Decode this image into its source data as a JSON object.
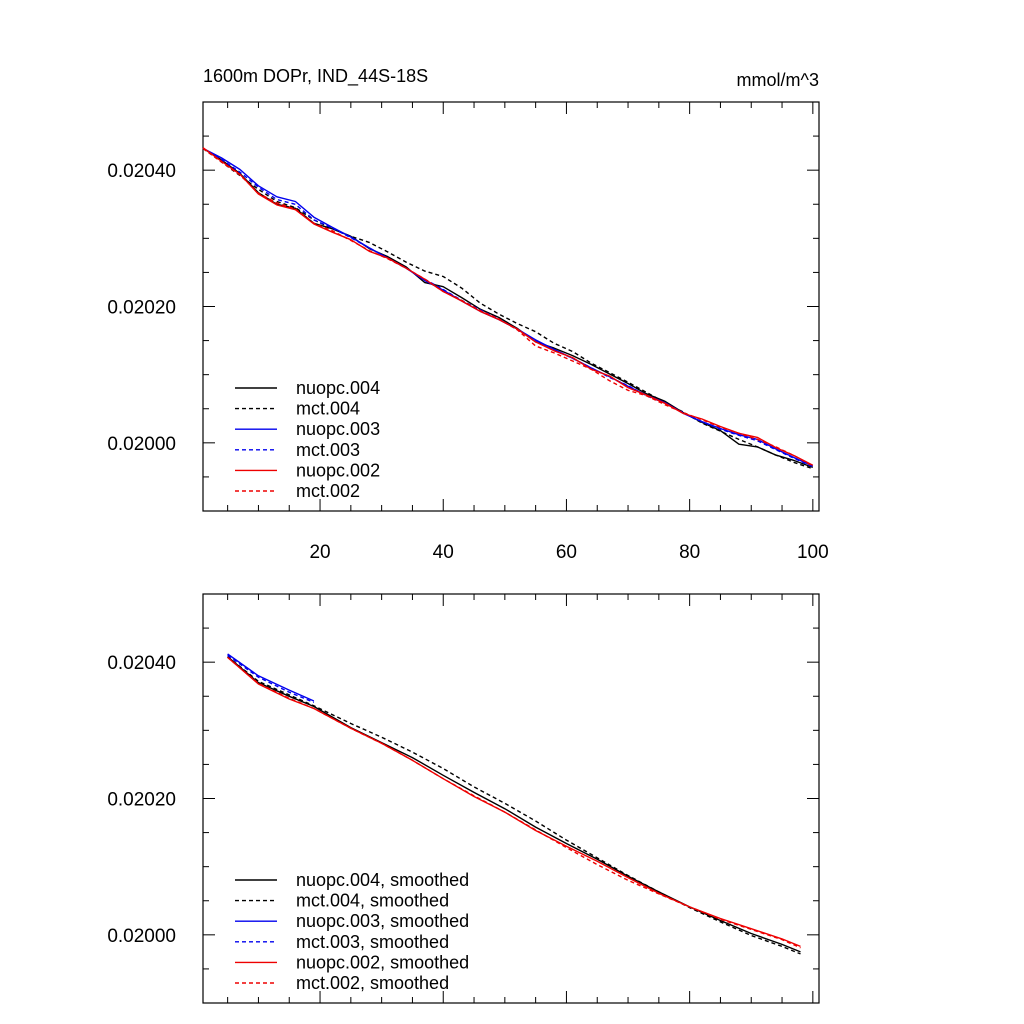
{
  "chart_data": [
    {
      "type": "line",
      "title": "1600m DOPr, IND_44S-18S",
      "units": "mmol/m^3",
      "xlim": [
        1,
        101
      ],
      "ylim": [
        0.0199,
        0.0205
      ],
      "x_ticks": [
        20,
        40,
        60,
        80,
        100
      ],
      "x_tick_labels": [
        "20",
        "40",
        "60",
        "80",
        "100"
      ],
      "y_ticks": [
        0.02,
        0.0202,
        0.0204
      ],
      "y_tick_labels": [
        "0.02000",
        "0.02020",
        "0.02040"
      ],
      "legend_position": "bottom-left",
      "series": [
        {
          "name": "nuopc.004",
          "color": "#000000",
          "dash": "solid",
          "x": [
            1,
            4,
            7,
            10,
            13,
            16,
            19,
            22,
            25,
            28,
            31,
            34,
            37,
            40,
            43,
            46,
            49,
            52,
            55,
            58,
            61,
            64,
            67,
            70,
            73,
            76,
            79,
            82,
            85,
            88,
            91,
            94,
            97,
            100
          ],
          "values": [
            0.020432,
            0.020415,
            0.020395,
            0.020367,
            0.02035,
            0.020344,
            0.020322,
            0.020314,
            0.020303,
            0.020285,
            0.020273,
            0.020258,
            0.020235,
            0.020229,
            0.020213,
            0.020196,
            0.020184,
            0.020168,
            0.020148,
            0.020139,
            0.020128,
            0.020115,
            0.020101,
            0.020087,
            0.020072,
            0.020061,
            0.020044,
            0.02003,
            0.020018,
            0.019998,
            0.019994,
            0.019982,
            0.019974,
            0.019964
          ]
        },
        {
          "name": "mct.004",
          "color": "#000000",
          "dash": "dashed",
          "x": [
            1,
            4,
            7,
            10,
            13,
            16,
            19,
            22,
            25,
            28,
            31,
            34,
            37,
            40,
            43,
            46,
            49,
            52,
            55,
            58,
            61,
            64,
            67,
            70,
            73,
            76,
            79,
            82,
            85,
            88,
            91,
            94,
            97,
            100
          ],
          "values": [
            0.020432,
            0.020412,
            0.020392,
            0.020372,
            0.020354,
            0.020345,
            0.020327,
            0.020314,
            0.020303,
            0.020294,
            0.02028,
            0.020265,
            0.020252,
            0.020244,
            0.020227,
            0.020205,
            0.020189,
            0.020175,
            0.020163,
            0.020146,
            0.020134,
            0.020117,
            0.020103,
            0.020089,
            0.020074,
            0.020059,
            0.020045,
            0.020029,
            0.020017,
            0.020005,
            0.019994,
            0.019982,
            0.019971,
            0.019962
          ]
        },
        {
          "name": "nuopc.003",
          "color": "#0000ee",
          "dash": "solid",
          "x": [
            1,
            4,
            7,
            10,
            13,
            16,
            19,
            22,
            25,
            28,
            31,
            34,
            37,
            40,
            43,
            46,
            49,
            52,
            55,
            58,
            61,
            64,
            67,
            70,
            73,
            76,
            79,
            82,
            85,
            88,
            91,
            94,
            97,
            100
          ],
          "values": [
            0.020432,
            0.020418,
            0.020401,
            0.020377,
            0.020361,
            0.020354,
            0.020331,
            0.020316,
            0.020302,
            0.020286,
            0.020271,
            0.020256,
            0.020238,
            0.020224,
            0.020208,
            0.020193,
            0.020181,
            0.020167,
            0.020151,
            0.020137,
            0.020124,
            0.02011,
            0.020097,
            0.020083,
            0.02007,
            0.020059,
            0.020043,
            0.020031,
            0.020021,
            0.020012,
            0.020005,
            0.019991,
            0.019978,
            0.019966
          ]
        },
        {
          "name": "mct.003",
          "color": "#0000ee",
          "dash": "dashed",
          "x": [
            1,
            4,
            7,
            10,
            13,
            16,
            19,
            22,
            25,
            28,
            31,
            34,
            37,
            40,
            43,
            46,
            49,
            52,
            55,
            58,
            61,
            64,
            67,
            70,
            73,
            76,
            79,
            82,
            85,
            88,
            91,
            94,
            97,
            100
          ],
          "values": [
            0.020432,
            0.020416,
            0.020397,
            0.020375,
            0.020357,
            0.02035,
            0.020327,
            0.020315,
            0.020301,
            0.020286,
            0.020271,
            0.020256,
            0.02024,
            0.020225,
            0.020209,
            0.020195,
            0.020182,
            0.020166,
            0.02015,
            0.020136,
            0.020124,
            0.02011,
            0.020096,
            0.020084,
            0.020069,
            0.020058,
            0.020044,
            0.020031,
            0.02002,
            0.020011,
            0.020003,
            0.01999,
            0.019977,
            0.019965
          ]
        },
        {
          "name": "nuopc.002",
          "color": "#ee0000",
          "dash": "solid",
          "x": [
            1,
            4,
            7,
            10,
            13,
            16,
            19,
            22,
            25,
            28,
            31,
            34,
            37,
            40,
            43,
            46,
            49,
            52,
            55,
            58,
            61,
            64,
            67,
            70,
            73,
            76,
            79,
            82,
            85,
            88,
            91,
            94,
            97,
            100
          ],
          "values": [
            0.020433,
            0.020413,
            0.020394,
            0.020365,
            0.020349,
            0.020342,
            0.020321,
            0.020309,
            0.020298,
            0.020281,
            0.020271,
            0.020256,
            0.02024,
            0.020222,
            0.020208,
            0.020193,
            0.020181,
            0.020167,
            0.020148,
            0.020135,
            0.020125,
            0.020108,
            0.020098,
            0.020081,
            0.02007,
            0.020058,
            0.020043,
            0.020035,
            0.020024,
            0.020014,
            0.020008,
            0.019993,
            0.019981,
            0.019967
          ]
        },
        {
          "name": "mct.002",
          "color": "#ee0000",
          "dash": "dashed",
          "x": [
            1,
            4,
            7,
            10,
            13,
            16,
            19,
            22,
            25,
            28,
            31,
            34,
            37,
            40,
            43,
            46,
            49,
            52,
            55,
            58,
            61,
            64,
            67,
            70,
            73,
            76,
            79,
            82,
            85,
            88,
            91,
            94,
            97,
            100
          ],
          "values": [
            0.020432,
            0.020412,
            0.020393,
            0.020366,
            0.020352,
            0.020343,
            0.020322,
            0.020311,
            0.020297,
            0.020282,
            0.02027,
            0.020256,
            0.02024,
            0.020222,
            0.020209,
            0.020194,
            0.020182,
            0.020166,
            0.020142,
            0.020132,
            0.02012,
            0.020108,
            0.020091,
            0.020077,
            0.020069,
            0.020056,
            0.020044,
            0.020034,
            0.020023,
            0.020014,
            0.020005,
            0.019994,
            0.019981,
            0.019966
          ]
        }
      ]
    },
    {
      "type": "line",
      "title": "",
      "units": "",
      "xlim": [
        1,
        101
      ],
      "ylim": [
        0.0199,
        0.0205
      ],
      "x_ticks": [
        20,
        40,
        60,
        80,
        100
      ],
      "x_tick_labels": [],
      "y_ticks": [
        0.02,
        0.0202,
        0.0204
      ],
      "y_tick_labels": [
        "0.02000",
        "0.02020",
        "0.02040"
      ],
      "legend_position": "bottom-left",
      "series": [
        {
          "name": "nuopc.004, smoothed",
          "color": "#000000",
          "dash": "solid",
          "x": [
            5,
            10,
            15,
            19,
            25,
            30,
            35,
            40,
            45,
            50,
            55,
            60,
            65,
            70,
            75,
            80,
            85,
            90,
            95,
            98
          ],
          "values": [
            0.020408,
            0.02037,
            0.02035,
            0.020335,
            0.020304,
            0.020282,
            0.02026,
            0.020234,
            0.020209,
            0.020185,
            0.020158,
            0.020134,
            0.020111,
            0.020086,
            0.020063,
            0.020041,
            0.020021,
            0.020002,
            0.019986,
            0.019975
          ]
        },
        {
          "name": "mct.004, smoothed",
          "color": "#000000",
          "dash": "dashed",
          "x": [
            5,
            10,
            15,
            19,
            25,
            30,
            35,
            40,
            45,
            50,
            55,
            60,
            65,
            70,
            75,
            80,
            85,
            90,
            95,
            98
          ],
          "values": [
            0.020408,
            0.020372,
            0.020352,
            0.020336,
            0.02031,
            0.02029,
            0.020268,
            0.020244,
            0.020217,
            0.020193,
            0.020167,
            0.020139,
            0.020113,
            0.020087,
            0.020063,
            0.02004,
            0.020019,
            0.019999,
            0.019983,
            0.019972
          ]
        },
        {
          "name": "nuopc.003, smoothed",
          "color": "#0000ee",
          "dash": "solid",
          "x": [
            5,
            10,
            15,
            19
          ],
          "values": [
            0.020412,
            0.02038,
            0.020359,
            0.020343
          ]
        },
        {
          "name": "mct.003, smoothed",
          "color": "#0000ee",
          "dash": "dashed",
          "x": [
            5,
            10,
            15,
            19
          ],
          "values": [
            0.02041,
            0.020378,
            0.020356,
            0.020341
          ]
        },
        {
          "name": "nuopc.002, smoothed",
          "color": "#ee0000",
          "dash": "solid",
          "x": [
            5,
            10,
            15,
            19,
            25,
            30,
            35,
            40,
            45,
            50,
            55,
            60,
            65,
            70,
            75,
            80,
            85,
            90,
            95,
            98
          ],
          "values": [
            0.020407,
            0.020368,
            0.020346,
            0.020332,
            0.020303,
            0.020281,
            0.020256,
            0.020229,
            0.020203,
            0.02018,
            0.020153,
            0.02013,
            0.020108,
            0.020084,
            0.020061,
            0.020041,
            0.020024,
            0.020009,
            0.019994,
            0.019983
          ]
        },
        {
          "name": "mct.002, smoothed",
          "color": "#ee0000",
          "dash": "dashed",
          "x": [
            5,
            10,
            15,
            19,
            25,
            30,
            35,
            40,
            45,
            50,
            55,
            60,
            65,
            70,
            75,
            80,
            85,
            90,
            95,
            98
          ],
          "values": [
            0.020407,
            0.020369,
            0.020347,
            0.020332,
            0.020303,
            0.020281,
            0.020256,
            0.020229,
            0.020204,
            0.02018,
            0.020154,
            0.020128,
            0.020103,
            0.02008,
            0.02006,
            0.020041,
            0.020023,
            0.020008,
            0.019993,
            0.019981
          ]
        }
      ]
    }
  ]
}
